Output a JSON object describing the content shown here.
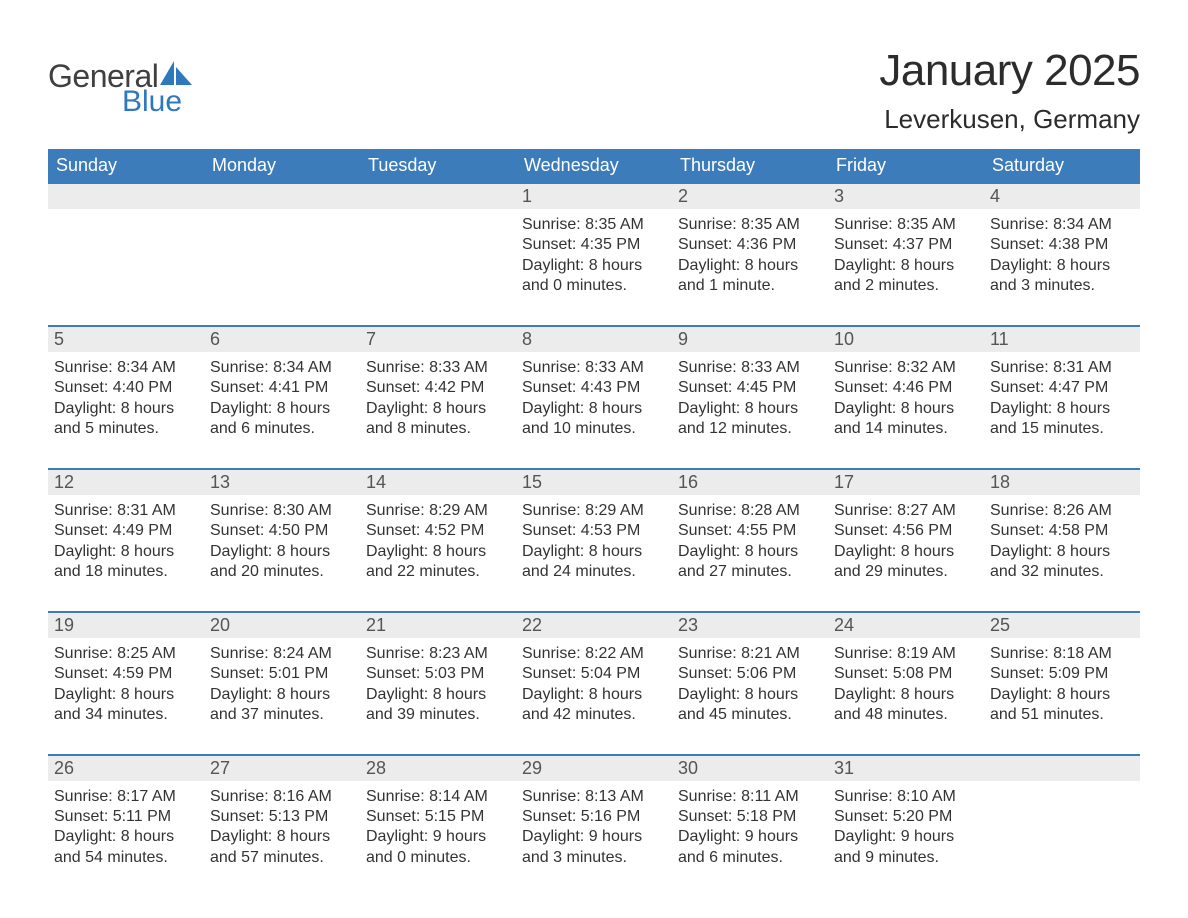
{
  "brand": {
    "part1": "General",
    "part2": "Blue",
    "part1_color": "#404040",
    "part2_color": "#2e78bd"
  },
  "title": "January 2025",
  "location": "Leverkusen, Germany",
  "header_bg": "#3d7cba",
  "header_text_color": "#ffffff",
  "daynum_bg": "#ececec",
  "row_border_color": "#3d7cba",
  "background_color": "#ffffff",
  "daysOfWeek": [
    "Sunday",
    "Monday",
    "Tuesday",
    "Wednesday",
    "Thursday",
    "Friday",
    "Saturday"
  ],
  "weeks": [
    [
      {
        "n": "",
        "sunrise": "",
        "sunset": "",
        "daylight": ""
      },
      {
        "n": "",
        "sunrise": "",
        "sunset": "",
        "daylight": ""
      },
      {
        "n": "",
        "sunrise": "",
        "sunset": "",
        "daylight": ""
      },
      {
        "n": "1",
        "sunrise": "Sunrise: 8:35 AM",
        "sunset": "Sunset: 4:35 PM",
        "daylight": "Daylight: 8 hours and 0 minutes."
      },
      {
        "n": "2",
        "sunrise": "Sunrise: 8:35 AM",
        "sunset": "Sunset: 4:36 PM",
        "daylight": "Daylight: 8 hours and 1 minute."
      },
      {
        "n": "3",
        "sunrise": "Sunrise: 8:35 AM",
        "sunset": "Sunset: 4:37 PM",
        "daylight": "Daylight: 8 hours and 2 minutes."
      },
      {
        "n": "4",
        "sunrise": "Sunrise: 8:34 AM",
        "sunset": "Sunset: 4:38 PM",
        "daylight": "Daylight: 8 hours and 3 minutes."
      }
    ],
    [
      {
        "n": "5",
        "sunrise": "Sunrise: 8:34 AM",
        "sunset": "Sunset: 4:40 PM",
        "daylight": "Daylight: 8 hours and 5 minutes."
      },
      {
        "n": "6",
        "sunrise": "Sunrise: 8:34 AM",
        "sunset": "Sunset: 4:41 PM",
        "daylight": "Daylight: 8 hours and 6 minutes."
      },
      {
        "n": "7",
        "sunrise": "Sunrise: 8:33 AM",
        "sunset": "Sunset: 4:42 PM",
        "daylight": "Daylight: 8 hours and 8 minutes."
      },
      {
        "n": "8",
        "sunrise": "Sunrise: 8:33 AM",
        "sunset": "Sunset: 4:43 PM",
        "daylight": "Daylight: 8 hours and 10 minutes."
      },
      {
        "n": "9",
        "sunrise": "Sunrise: 8:33 AM",
        "sunset": "Sunset: 4:45 PM",
        "daylight": "Daylight: 8 hours and 12 minutes."
      },
      {
        "n": "10",
        "sunrise": "Sunrise: 8:32 AM",
        "sunset": "Sunset: 4:46 PM",
        "daylight": "Daylight: 8 hours and 14 minutes."
      },
      {
        "n": "11",
        "sunrise": "Sunrise: 8:31 AM",
        "sunset": "Sunset: 4:47 PM",
        "daylight": "Daylight: 8 hours and 15 minutes."
      }
    ],
    [
      {
        "n": "12",
        "sunrise": "Sunrise: 8:31 AM",
        "sunset": "Sunset: 4:49 PM",
        "daylight": "Daylight: 8 hours and 18 minutes."
      },
      {
        "n": "13",
        "sunrise": "Sunrise: 8:30 AM",
        "sunset": "Sunset: 4:50 PM",
        "daylight": "Daylight: 8 hours and 20 minutes."
      },
      {
        "n": "14",
        "sunrise": "Sunrise: 8:29 AM",
        "sunset": "Sunset: 4:52 PM",
        "daylight": "Daylight: 8 hours and 22 minutes."
      },
      {
        "n": "15",
        "sunrise": "Sunrise: 8:29 AM",
        "sunset": "Sunset: 4:53 PM",
        "daylight": "Daylight: 8 hours and 24 minutes."
      },
      {
        "n": "16",
        "sunrise": "Sunrise: 8:28 AM",
        "sunset": "Sunset: 4:55 PM",
        "daylight": "Daylight: 8 hours and 27 minutes."
      },
      {
        "n": "17",
        "sunrise": "Sunrise: 8:27 AM",
        "sunset": "Sunset: 4:56 PM",
        "daylight": "Daylight: 8 hours and 29 minutes."
      },
      {
        "n": "18",
        "sunrise": "Sunrise: 8:26 AM",
        "sunset": "Sunset: 4:58 PM",
        "daylight": "Daylight: 8 hours and 32 minutes."
      }
    ],
    [
      {
        "n": "19",
        "sunrise": "Sunrise: 8:25 AM",
        "sunset": "Sunset: 4:59 PM",
        "daylight": "Daylight: 8 hours and 34 minutes."
      },
      {
        "n": "20",
        "sunrise": "Sunrise: 8:24 AM",
        "sunset": "Sunset: 5:01 PM",
        "daylight": "Daylight: 8 hours and 37 minutes."
      },
      {
        "n": "21",
        "sunrise": "Sunrise: 8:23 AM",
        "sunset": "Sunset: 5:03 PM",
        "daylight": "Daylight: 8 hours and 39 minutes."
      },
      {
        "n": "22",
        "sunrise": "Sunrise: 8:22 AM",
        "sunset": "Sunset: 5:04 PM",
        "daylight": "Daylight: 8 hours and 42 minutes."
      },
      {
        "n": "23",
        "sunrise": "Sunrise: 8:21 AM",
        "sunset": "Sunset: 5:06 PM",
        "daylight": "Daylight: 8 hours and 45 minutes."
      },
      {
        "n": "24",
        "sunrise": "Sunrise: 8:19 AM",
        "sunset": "Sunset: 5:08 PM",
        "daylight": "Daylight: 8 hours and 48 minutes."
      },
      {
        "n": "25",
        "sunrise": "Sunrise: 8:18 AM",
        "sunset": "Sunset: 5:09 PM",
        "daylight": "Daylight: 8 hours and 51 minutes."
      }
    ],
    [
      {
        "n": "26",
        "sunrise": "Sunrise: 8:17 AM",
        "sunset": "Sunset: 5:11 PM",
        "daylight": "Daylight: 8 hours and 54 minutes."
      },
      {
        "n": "27",
        "sunrise": "Sunrise: 8:16 AM",
        "sunset": "Sunset: 5:13 PM",
        "daylight": "Daylight: 8 hours and 57 minutes."
      },
      {
        "n": "28",
        "sunrise": "Sunrise: 8:14 AM",
        "sunset": "Sunset: 5:15 PM",
        "daylight": "Daylight: 9 hours and 0 minutes."
      },
      {
        "n": "29",
        "sunrise": "Sunrise: 8:13 AM",
        "sunset": "Sunset: 5:16 PM",
        "daylight": "Daylight: 9 hours and 3 minutes."
      },
      {
        "n": "30",
        "sunrise": "Sunrise: 8:11 AM",
        "sunset": "Sunset: 5:18 PM",
        "daylight": "Daylight: 9 hours and 6 minutes."
      },
      {
        "n": "31",
        "sunrise": "Sunrise: 8:10 AM",
        "sunset": "Sunset: 5:20 PM",
        "daylight": "Daylight: 9 hours and 9 minutes."
      },
      {
        "n": "",
        "sunrise": "",
        "sunset": "",
        "daylight": ""
      }
    ]
  ]
}
